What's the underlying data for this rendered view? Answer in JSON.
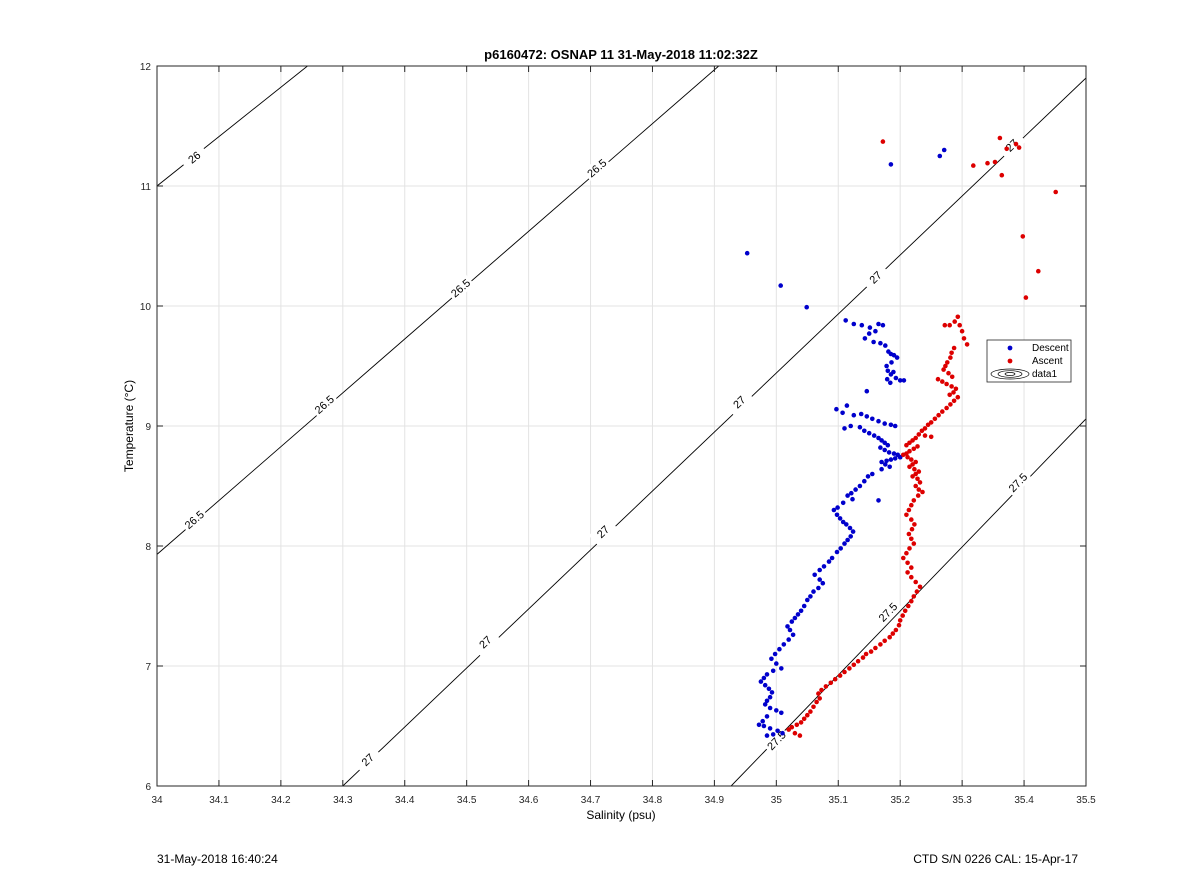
{
  "chart_data": {
    "type": "scatter",
    "title": "p6160472: OSNAP 11 31-May-2018 11:02:32Z",
    "xlabel": "Salinity (psu)",
    "ylabel": "Temperature (°C)",
    "xlim": [
      34,
      35.5
    ],
    "ylim": [
      6,
      12
    ],
    "xticks": [
      "34",
      "34.1",
      "34.2",
      "34.3",
      "34.4",
      "34.5",
      "34.6",
      "34.7",
      "34.8",
      "34.9",
      "35",
      "35.1",
      "35.2",
      "35.3",
      "35.4",
      "35.5"
    ],
    "yticks": [
      "6",
      "7",
      "8",
      "9",
      "10",
      "11",
      "12"
    ],
    "grid": true,
    "legend_position": "right",
    "legend": [
      "Descent",
      "Ascent",
      "data1"
    ],
    "series": [
      {
        "name": "Descent",
        "color": "#0000cc",
        "points": [
          [
            34.953,
            10.44
          ],
          [
            35.007,
            10.17
          ],
          [
            35.049,
            9.99
          ],
          [
            35.185,
            11.18
          ],
          [
            35.264,
            11.25
          ],
          [
            35.271,
            11.3
          ],
          [
            35.112,
            9.88
          ],
          [
            35.125,
            9.85
          ],
          [
            35.138,
            9.84
          ],
          [
            35.151,
            9.82
          ],
          [
            35.165,
            9.85
          ],
          [
            35.172,
            9.84
          ],
          [
            35.16,
            9.79
          ],
          [
            35.15,
            9.77
          ],
          [
            35.143,
            9.73
          ],
          [
            35.157,
            9.7
          ],
          [
            35.168,
            9.69
          ],
          [
            35.176,
            9.67
          ],
          [
            35.181,
            9.62
          ],
          [
            35.185,
            9.6
          ],
          [
            35.19,
            9.59
          ],
          [
            35.195,
            9.57
          ],
          [
            35.186,
            9.53
          ],
          [
            35.178,
            9.5
          ],
          [
            35.18,
            9.46
          ],
          [
            35.185,
            9.43
          ],
          [
            35.193,
            9.4
          ],
          [
            35.2,
            9.38
          ],
          [
            35.206,
            9.38
          ],
          [
            35.184,
            9.36
          ],
          [
            35.179,
            9.39
          ],
          [
            35.189,
            9.45
          ],
          [
            35.146,
            9.29
          ],
          [
            35.114,
            9.17
          ],
          [
            35.097,
            9.14
          ],
          [
            35.107,
            9.11
          ],
          [
            35.125,
            9.09
          ],
          [
            35.137,
            9.1
          ],
          [
            35.146,
            9.08
          ],
          [
            35.155,
            9.06
          ],
          [
            35.165,
            9.04
          ],
          [
            35.175,
            9.02
          ],
          [
            35.185,
            9.01
          ],
          [
            35.192,
            9.0
          ],
          [
            35.12,
            9.0
          ],
          [
            35.11,
            8.98
          ],
          [
            35.135,
            8.99
          ],
          [
            35.142,
            8.96
          ],
          [
            35.15,
            8.94
          ],
          [
            35.158,
            8.92
          ],
          [
            35.165,
            8.9
          ],
          [
            35.17,
            8.88
          ],
          [
            35.175,
            8.86
          ],
          [
            35.18,
            8.84
          ],
          [
            35.168,
            8.82
          ],
          [
            35.175,
            8.8
          ],
          [
            35.182,
            8.78
          ],
          [
            35.19,
            8.77
          ],
          [
            35.196,
            8.76
          ],
          [
            35.2,
            8.74
          ],
          [
            35.192,
            8.73
          ],
          [
            35.185,
            8.72
          ],
          [
            35.178,
            8.71
          ],
          [
            35.17,
            8.7
          ],
          [
            35.176,
            8.68
          ],
          [
            35.183,
            8.66
          ],
          [
            35.17,
            8.64
          ],
          [
            35.2,
            8.74
          ],
          [
            35.155,
            8.6
          ],
          [
            35.148,
            8.58
          ],
          [
            35.142,
            8.54
          ],
          [
            35.135,
            8.5
          ],
          [
            35.128,
            8.47
          ],
          [
            35.121,
            8.44
          ],
          [
            35.115,
            8.42
          ],
          [
            35.123,
            8.39
          ],
          [
            35.165,
            8.38
          ],
          [
            35.108,
            8.36
          ],
          [
            35.099,
            8.32
          ],
          [
            35.093,
            8.3
          ],
          [
            35.098,
            8.26
          ],
          [
            35.103,
            8.23
          ],
          [
            35.108,
            8.2
          ],
          [
            35.113,
            8.18
          ],
          [
            35.119,
            8.15
          ],
          [
            35.124,
            8.12
          ],
          [
            35.12,
            8.08
          ],
          [
            35.115,
            8.05
          ],
          [
            35.11,
            8.02
          ],
          [
            35.104,
            7.98
          ],
          [
            35.098,
            7.95
          ],
          [
            35.09,
            7.9
          ],
          [
            35.085,
            7.87
          ],
          [
            35.077,
            7.83
          ],
          [
            35.07,
            7.8
          ],
          [
            35.062,
            7.76
          ],
          [
            35.07,
            7.72
          ],
          [
            35.075,
            7.69
          ],
          [
            35.068,
            7.65
          ],
          [
            35.06,
            7.62
          ],
          [
            35.055,
            7.58
          ],
          [
            35.05,
            7.55
          ],
          [
            35.045,
            7.5
          ],
          [
            35.04,
            7.46
          ],
          [
            35.035,
            7.43
          ],
          [
            35.03,
            7.4
          ],
          [
            35.025,
            7.37
          ],
          [
            35.018,
            7.33
          ],
          [
            35.022,
            7.3
          ],
          [
            35.027,
            7.26
          ],
          [
            35.02,
            7.22
          ],
          [
            35.012,
            7.18
          ],
          [
            35.005,
            7.14
          ],
          [
            34.998,
            7.1
          ],
          [
            34.992,
            7.06
          ],
          [
            35.0,
            7.02
          ],
          [
            35.008,
            6.98
          ],
          [
            34.995,
            6.96
          ],
          [
            34.985,
            6.93
          ],
          [
            34.98,
            6.9
          ],
          [
            34.975,
            6.87
          ],
          [
            34.982,
            6.84
          ],
          [
            34.988,
            6.81
          ],
          [
            34.993,
            6.78
          ],
          [
            34.99,
            6.74
          ],
          [
            34.985,
            6.71
          ],
          [
            34.982,
            6.68
          ],
          [
            34.99,
            6.65
          ],
          [
            35.0,
            6.63
          ],
          [
            35.008,
            6.61
          ],
          [
            34.985,
            6.58
          ],
          [
            34.978,
            6.54
          ],
          [
            34.972,
            6.51
          ],
          [
            34.98,
            6.5
          ],
          [
            34.99,
            6.48
          ],
          [
            35.002,
            6.46
          ],
          [
            35.01,
            6.44
          ],
          [
            34.995,
            6.43
          ],
          [
            34.985,
            6.42
          ]
        ]
      },
      {
        "name": "Ascent",
        "color": "#dd0000",
        "points": [
          [
            35.172,
            11.37
          ],
          [
            35.361,
            11.4
          ],
          [
            35.372,
            11.31
          ],
          [
            35.387,
            11.35
          ],
          [
            35.392,
            11.32
          ],
          [
            35.353,
            11.2
          ],
          [
            35.341,
            11.19
          ],
          [
            35.318,
            11.17
          ],
          [
            35.364,
            11.09
          ],
          [
            35.451,
            10.95
          ],
          [
            35.398,
            10.58
          ],
          [
            35.423,
            10.29
          ],
          [
            35.403,
            10.07
          ],
          [
            35.293,
            9.91
          ],
          [
            35.288,
            9.87
          ],
          [
            35.28,
            9.84
          ],
          [
            35.272,
            9.84
          ],
          [
            35.296,
            9.84
          ],
          [
            35.3,
            9.79
          ],
          [
            35.303,
            9.73
          ],
          [
            35.308,
            9.68
          ],
          [
            35.287,
            9.65
          ],
          [
            35.283,
            9.61
          ],
          [
            35.281,
            9.57
          ],
          [
            35.276,
            9.53
          ],
          [
            35.273,
            9.5
          ],
          [
            35.27,
            9.47
          ],
          [
            35.278,
            9.44
          ],
          [
            35.284,
            9.41
          ],
          [
            35.261,
            9.39
          ],
          [
            35.268,
            9.37
          ],
          [
            35.275,
            9.35
          ],
          [
            35.283,
            9.33
          ],
          [
            35.29,
            9.31
          ],
          [
            35.286,
            9.28
          ],
          [
            35.28,
            9.26
          ],
          [
            35.293,
            9.24
          ],
          [
            35.287,
            9.21
          ],
          [
            35.281,
            9.18
          ],
          [
            35.275,
            9.15
          ],
          [
            35.268,
            9.12
          ],
          [
            35.262,
            9.09
          ],
          [
            35.256,
            9.06
          ],
          [
            35.25,
            9.03
          ],
          [
            35.245,
            9.01
          ],
          [
            35.24,
            8.98
          ],
          [
            35.235,
            8.96
          ],
          [
            35.23,
            8.93
          ],
          [
            35.24,
            8.92
          ],
          [
            35.25,
            8.91
          ],
          [
            35.225,
            8.9
          ],
          [
            35.22,
            8.88
          ],
          [
            35.215,
            8.86
          ],
          [
            35.21,
            8.84
          ],
          [
            35.228,
            8.83
          ],
          [
            35.222,
            8.81
          ],
          [
            35.215,
            8.79
          ],
          [
            35.21,
            8.77
          ],
          [
            35.205,
            8.76
          ],
          [
            35.212,
            8.74
          ],
          [
            35.218,
            8.72
          ],
          [
            35.225,
            8.7
          ],
          [
            35.22,
            8.68
          ],
          [
            35.215,
            8.66
          ],
          [
            35.223,
            8.64
          ],
          [
            35.23,
            8.62
          ],
          [
            35.225,
            8.6
          ],
          [
            35.22,
            8.58
          ],
          [
            35.228,
            8.56
          ],
          [
            35.232,
            8.53
          ],
          [
            35.225,
            8.5
          ],
          [
            35.23,
            8.47
          ],
          [
            35.236,
            8.45
          ],
          [
            35.229,
            8.42
          ],
          [
            35.222,
            8.38
          ],
          [
            35.218,
            8.34
          ],
          [
            35.214,
            8.3
          ],
          [
            35.21,
            8.26
          ],
          [
            35.218,
            8.22
          ],
          [
            35.223,
            8.18
          ],
          [
            35.219,
            8.14
          ],
          [
            35.214,
            8.1
          ],
          [
            35.218,
            8.06
          ],
          [
            35.222,
            8.02
          ],
          [
            35.215,
            7.98
          ],
          [
            35.21,
            7.94
          ],
          [
            35.205,
            7.9
          ],
          [
            35.212,
            7.86
          ],
          [
            35.218,
            7.82
          ],
          [
            35.212,
            7.78
          ],
          [
            35.218,
            7.74
          ],
          [
            35.225,
            7.7
          ],
          [
            35.232,
            7.66
          ],
          [
            35.227,
            7.62
          ],
          [
            35.222,
            7.58
          ],
          [
            35.218,
            7.54
          ],
          [
            35.213,
            7.5
          ],
          [
            35.208,
            7.46
          ],
          [
            35.204,
            7.42
          ],
          [
            35.2,
            7.38
          ],
          [
            35.198,
            7.34
          ],
          [
            35.193,
            7.3
          ],
          [
            35.188,
            7.27
          ],
          [
            35.183,
            7.24
          ],
          [
            35.175,
            7.21
          ],
          [
            35.168,
            7.18
          ],
          [
            35.16,
            7.15
          ],
          [
            35.153,
            7.12
          ],
          [
            35.145,
            7.1
          ],
          [
            35.14,
            7.07
          ],
          [
            35.132,
            7.04
          ],
          [
            35.125,
            7.01
          ],
          [
            35.118,
            6.98
          ],
          [
            35.11,
            6.95
          ],
          [
            35.103,
            6.92
          ],
          [
            35.095,
            6.89
          ],
          [
            35.088,
            6.86
          ],
          [
            35.08,
            6.83
          ],
          [
            35.073,
            6.8
          ],
          [
            35.068,
            6.77
          ],
          [
            35.07,
            6.73
          ],
          [
            35.065,
            6.7
          ],
          [
            35.06,
            6.66
          ],
          [
            35.055,
            6.62
          ],
          [
            35.05,
            6.59
          ],
          [
            35.045,
            6.56
          ],
          [
            35.04,
            6.53
          ],
          [
            35.033,
            6.51
          ],
          [
            35.025,
            6.49
          ],
          [
            35.02,
            6.47
          ],
          [
            35.03,
            6.44
          ],
          [
            35.038,
            6.42
          ]
        ]
      }
    ],
    "contours": [
      {
        "level": "26",
        "points": [
          [
            34.0,
            11.0
          ],
          [
            34.243,
            12.0
          ]
        ],
        "labels": [
          [
            34.06,
            11.24
          ]
        ]
      },
      {
        "level": "26.5",
        "points": [
          [
            34.0,
            7.93
          ],
          [
            34.907,
            12.0
          ]
        ],
        "labels": [
          [
            34.06,
            8.22
          ],
          [
            34.27,
            9.18
          ],
          [
            34.49,
            10.15
          ],
          [
            34.71,
            11.15
          ]
        ]
      },
      {
        "level": "27",
        "points": [
          [
            34.3,
            6.0
          ],
          [
            35.5,
            11.9
          ]
        ],
        "labels": [
          [
            34.34,
            6.22
          ],
          [
            34.53,
            7.2
          ],
          [
            34.72,
            8.12
          ],
          [
            34.94,
            9.2
          ],
          [
            35.16,
            10.24
          ],
          [
            35.38,
            11.34
          ]
        ]
      },
      {
        "level": "27.5",
        "points": [
          [
            34.927,
            6.0
          ],
          [
            35.5,
            9.06
          ]
        ],
        "labels": [
          [
            35.0,
            6.38
          ],
          [
            35.18,
            7.45
          ],
          [
            35.39,
            8.53
          ]
        ]
      }
    ],
    "annotations": {
      "footer_left": "31-May-2018 16:40:24",
      "footer_right": "CTD S/N 0226  CAL: 15-Apr-17"
    }
  }
}
